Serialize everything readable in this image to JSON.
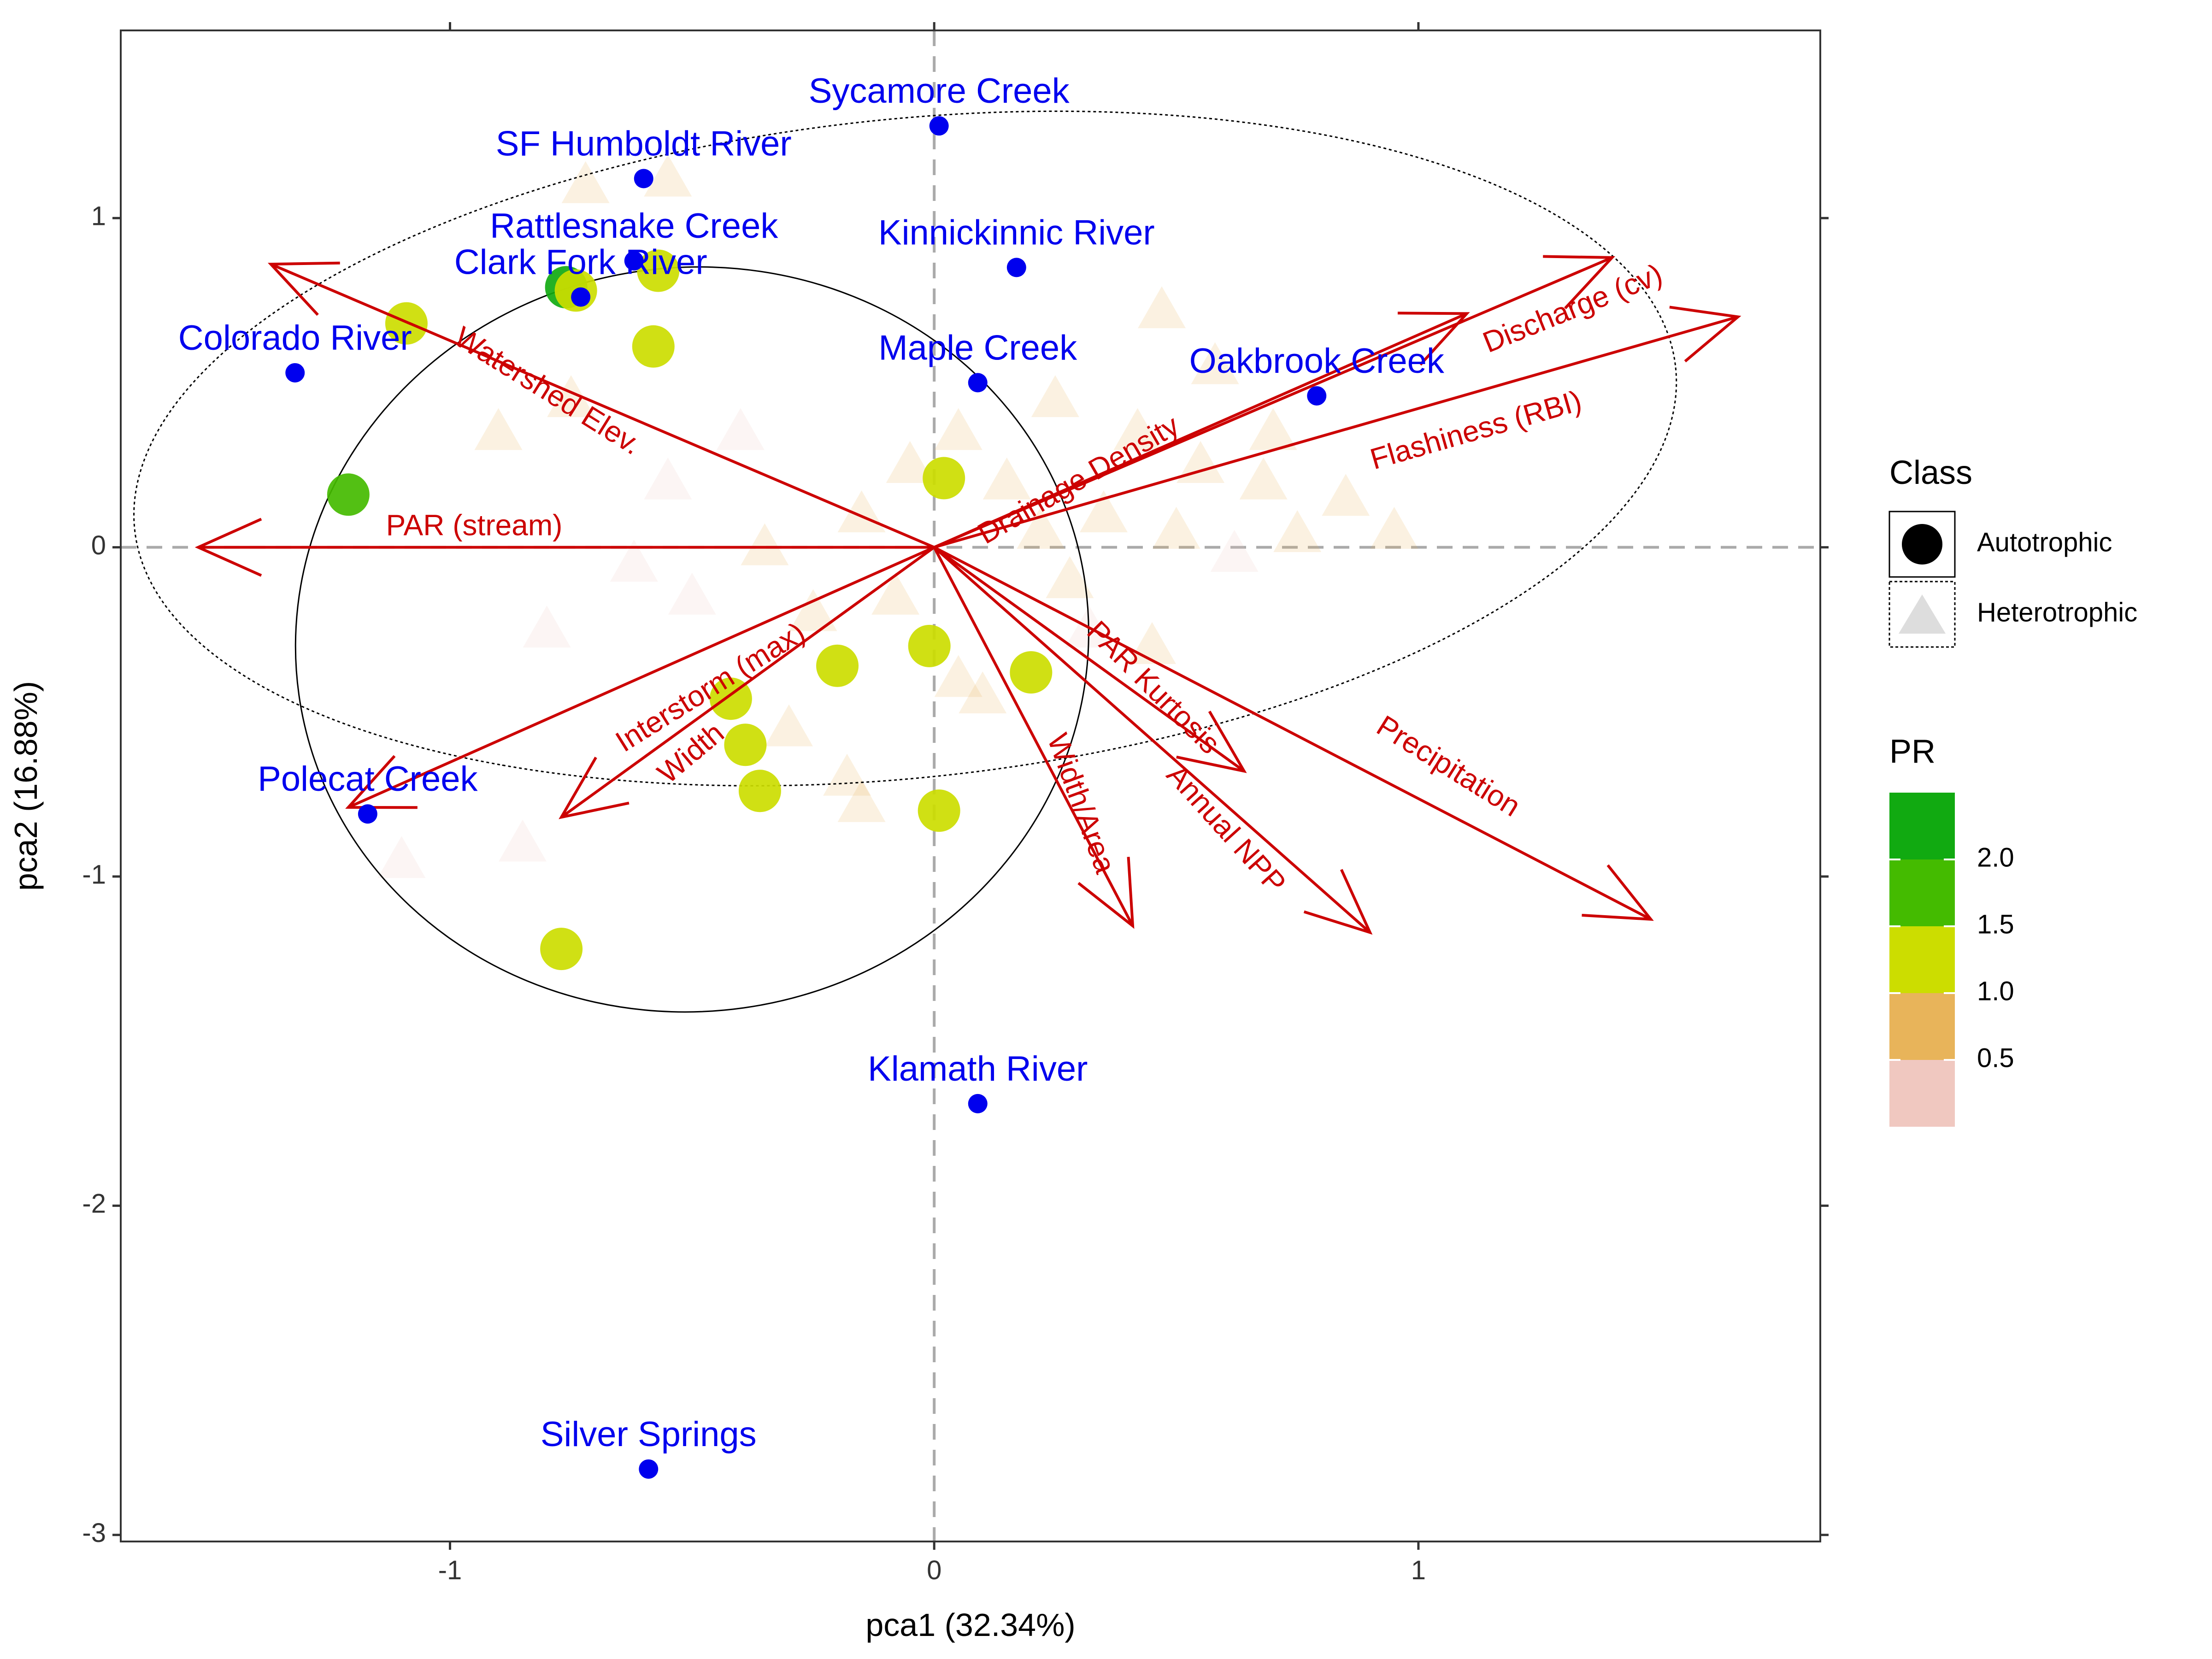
{
  "chart_data": {
    "type": "scatter",
    "title": "",
    "xlabel": "pca1 (32.34%)",
    "ylabel": "pca2 (16.88%)",
    "xlim": [
      -1.68,
      1.83
    ],
    "ylim": [
      -3.02,
      1.57
    ],
    "x_ticks": [
      -1,
      0,
      1
    ],
    "y_ticks": [
      -3,
      -2,
      -1,
      0,
      1
    ],
    "x_tick_labels": [
      "-1",
      "0",
      "1"
    ],
    "y_tick_labels": [
      "-3",
      "-2",
      "-1",
      "0",
      "1"
    ],
    "grid": false,
    "reference_lines": {
      "x": 0,
      "y": 0,
      "style": "dashed",
      "color": "#aaaaaa"
    },
    "colors": {
      "arrow": "#cc0000",
      "site_point": "#0000ee",
      "site_label": "#0000ee",
      "PR_2.0": "#11aa11",
      "PR_1.5": "#44bb00",
      "PR_1.0": "#ccdd00",
      "PR_0.5": "#e8b45a",
      "PR_low": "#f0c8c0"
    },
    "legend": {
      "placement": "right",
      "class_title": "Class",
      "class_items": [
        {
          "label": "Autotrophic",
          "shape": "circle"
        },
        {
          "label": "Heterotrophic",
          "shape": "triangle"
        }
      ],
      "color_title": "PR",
      "color_labels": [
        "2.0",
        "1.5",
        "1.0",
        "0.5"
      ],
      "color_scale": [
        "#11aa11",
        "#44bb00",
        "#ccdd00",
        "#e8b45a",
        "#f0c8c0"
      ]
    },
    "loadings": [
      {
        "name": "Discharge (cv)",
        "x": 1.4,
        "y": 0.88,
        "label_x": 1.32,
        "label_y": 0.72,
        "angle": -22
      },
      {
        "name": "Flashiness (RBI)",
        "x": 1.66,
        "y": 0.7,
        "label_x": 1.12,
        "label_y": 0.35,
        "angle": -16
      },
      {
        "name": "Drainage Density",
        "x": 1.1,
        "y": 0.71,
        "label_x": 0.3,
        "label_y": 0.2,
        "angle": -30
      },
      {
        "name": "Watershed Elev.",
        "x": -1.37,
        "y": 0.86,
        "label_x": -0.8,
        "label_y": 0.47,
        "angle": 32
      },
      {
        "name": "PAR (stream)",
        "x": -1.52,
        "y": 0.0,
        "label_x": -0.95,
        "label_y": 0.06,
        "angle": 0
      },
      {
        "name": "Interstorm (max)",
        "x": -1.21,
        "y": -0.79,
        "label_x": -0.46,
        "label_y": -0.43,
        "angle": -32
      },
      {
        "name": "Width",
        "x": -0.77,
        "y": -0.82,
        "label_x": -0.5,
        "label_y": -0.63,
        "angle": -40
      },
      {
        "name": "Width/Area",
        "x": 0.41,
        "y": -1.15,
        "label_x": 0.3,
        "label_y": -0.78,
        "angle": 70
      },
      {
        "name": "Annual NPP",
        "x": 0.9,
        "y": -1.17,
        "label_x": 0.6,
        "label_y": -0.86,
        "angle": 48
      },
      {
        "name": "PAR Kurtosis",
        "x": 0.64,
        "y": -0.68,
        "label_x": 0.45,
        "label_y": -0.43,
        "angle": 45
      },
      {
        "name": "Precipitation",
        "x": 1.48,
        "y": -1.13,
        "label_x": 1.06,
        "label_y": -0.67,
        "angle": 32
      }
    ],
    "sites": [
      {
        "name": "Sycamore Creek",
        "x": 0.01,
        "y": 1.28,
        "label_x": 0.01,
        "label_y": 1.35
      },
      {
        "name": "SF Humboldt River",
        "x": -0.6,
        "y": 1.12,
        "label_x": -0.6,
        "label_y": 1.19
      },
      {
        "name": "Rattlesnake Creek",
        "x": -0.62,
        "y": 0.87,
        "label_x": -0.62,
        "label_y": 0.94
      },
      {
        "name": "Clark Fork River",
        "x": -0.73,
        "y": 0.76,
        "label_x": -0.73,
        "label_y": 0.83
      },
      {
        "name": "Kinnickinnic River",
        "x": 0.17,
        "y": 0.85,
        "label_x": 0.17,
        "label_y": 0.92
      },
      {
        "name": "Colorado River",
        "x": -1.32,
        "y": 0.53,
        "label_x": -1.32,
        "label_y": 0.6
      },
      {
        "name": "Maple Creek",
        "x": 0.09,
        "y": 0.5,
        "label_x": 0.09,
        "label_y": 0.57
      },
      {
        "name": "Oakbrook Creek",
        "x": 0.79,
        "y": 0.46,
        "label_x": 0.79,
        "label_y": 0.53
      },
      {
        "name": "Polecat Creek",
        "x": -1.17,
        "y": -0.81,
        "label_x": -1.17,
        "label_y": -0.74
      },
      {
        "name": "Klamath River",
        "x": 0.09,
        "y": -1.69,
        "label_x": 0.09,
        "label_y": -1.62
      },
      {
        "name": "Silver Springs",
        "x": -0.59,
        "y": -2.8,
        "label_x": -0.59,
        "label_y": -2.73
      }
    ],
    "autotrophic_points": [
      {
        "x": -1.21,
        "y": 0.16,
        "pr": 1.6
      },
      {
        "x": -0.76,
        "y": 0.79,
        "pr": 2.0
      },
      {
        "x": -0.74,
        "y": 0.78,
        "pr": 1.0
      },
      {
        "x": -0.57,
        "y": 0.84,
        "pr": 1.0
      },
      {
        "x": -0.58,
        "y": 0.61,
        "pr": 1.0
      },
      {
        "x": -1.09,
        "y": 0.68,
        "pr": 1.0
      },
      {
        "x": 0.02,
        "y": 0.21,
        "pr": 1.0
      },
      {
        "x": -0.2,
        "y": -0.36,
        "pr": 1.0
      },
      {
        "x": -0.01,
        "y": -0.3,
        "pr": 1.0
      },
      {
        "x": 0.2,
        "y": -0.38,
        "pr": 1.0
      },
      {
        "x": -0.42,
        "y": -0.46,
        "pr": 1.0
      },
      {
        "x": -0.39,
        "y": -0.6,
        "pr": 1.0
      },
      {
        "x": -0.36,
        "y": -0.74,
        "pr": 1.0
      },
      {
        "x": 0.01,
        "y": -0.8,
        "pr": 1.0
      },
      {
        "x": -0.77,
        "y": -1.22,
        "pr": 1.0
      }
    ],
    "heterotrophic_points": [
      {
        "x": 0.47,
        "y": 0.72,
        "pr": 0.5
      },
      {
        "x": 0.58,
        "y": 0.55,
        "pr": 0.5
      },
      {
        "x": 0.42,
        "y": 0.35,
        "pr": 0.5
      },
      {
        "x": 0.55,
        "y": 0.25,
        "pr": 0.5
      },
      {
        "x": 0.68,
        "y": 0.2,
        "pr": 0.5
      },
      {
        "x": 0.35,
        "y": 0.1,
        "pr": 0.5
      },
      {
        "x": 0.5,
        "y": 0.05,
        "pr": 0.5
      },
      {
        "x": 0.62,
        "y": -0.02,
        "pr": 0.4
      },
      {
        "x": 0.75,
        "y": 0.04,
        "pr": 0.5
      },
      {
        "x": 0.28,
        "y": -0.1,
        "pr": 0.5
      },
      {
        "x": 0.15,
        "y": 0.2,
        "pr": 0.5
      },
      {
        "x": 0.22,
        "y": 0.05,
        "pr": 0.5
      },
      {
        "x": 0.05,
        "y": -0.4,
        "pr": 0.5
      },
      {
        "x": -0.05,
        "y": 0.25,
        "pr": 0.5
      },
      {
        "x": -0.15,
        "y": 0.1,
        "pr": 0.5
      },
      {
        "x": -0.25,
        "y": -0.2,
        "pr": 0.5
      },
      {
        "x": -0.3,
        "y": -0.55,
        "pr": 0.5
      },
      {
        "x": -0.18,
        "y": -0.7,
        "pr": 0.5
      },
      {
        "x": -0.08,
        "y": -0.15,
        "pr": 0.5
      },
      {
        "x": -0.4,
        "y": 0.35,
        "pr": 0.4
      },
      {
        "x": -0.55,
        "y": 0.2,
        "pr": 0.4
      },
      {
        "x": -0.5,
        "y": -0.15,
        "pr": 0.4
      },
      {
        "x": -0.62,
        "y": -0.05,
        "pr": 0.4
      },
      {
        "x": -0.75,
        "y": 0.45,
        "pr": 0.5
      },
      {
        "x": -0.9,
        "y": 0.35,
        "pr": 0.5
      },
      {
        "x": -0.8,
        "y": -0.25,
        "pr": 0.4
      },
      {
        "x": -0.55,
        "y": 1.12,
        "pr": 0.5
      },
      {
        "x": -0.72,
        "y": 1.1,
        "pr": 0.5
      },
      {
        "x": -0.85,
        "y": -0.9,
        "pr": 0.4
      },
      {
        "x": -1.1,
        "y": -0.95,
        "pr": 0.4
      },
      {
        "x": -0.15,
        "y": -0.78,
        "pr": 0.5
      },
      {
        "x": 0.1,
        "y": -0.45,
        "pr": 0.5
      },
      {
        "x": 0.32,
        "y": -0.25,
        "pr": 0.4
      },
      {
        "x": 0.45,
        "y": -0.3,
        "pr": 0.5
      },
      {
        "x": 0.7,
        "y": 0.35,
        "pr": 0.5
      },
      {
        "x": 0.85,
        "y": 0.15,
        "pr": 0.5
      },
      {
        "x": 0.95,
        "y": 0.05,
        "pr": 0.5
      },
      {
        "x": 0.25,
        "y": 0.45,
        "pr": 0.5
      },
      {
        "x": 0.05,
        "y": 0.35,
        "pr": 0.5
      },
      {
        "x": -0.35,
        "y": 0.0,
        "pr": 0.5
      }
    ]
  }
}
